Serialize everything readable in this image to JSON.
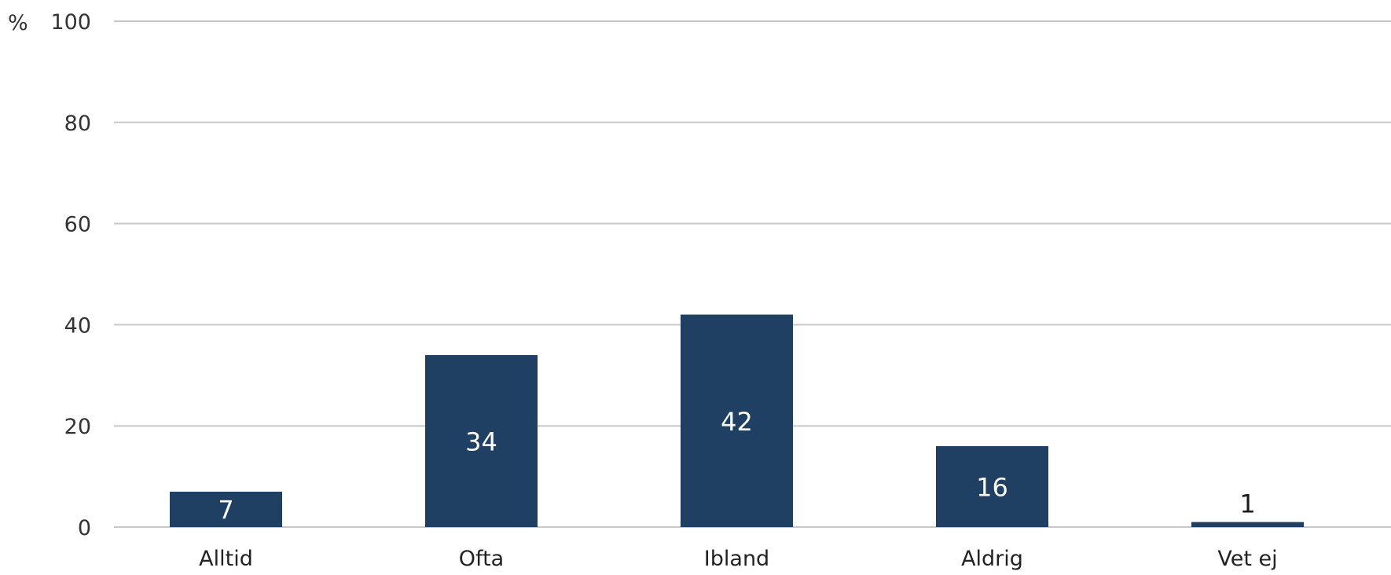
{
  "chart_data": {
    "type": "bar",
    "title": "",
    "xlabel": "",
    "ylabel": "%",
    "categories": [
      "Alltid",
      "Ofta",
      "Ibland",
      "Aldrig",
      "Vet ej"
    ],
    "values": [
      7,
      34,
      42,
      16,
      1
    ],
    "data_labels": [
      "7",
      "34",
      "42",
      "16",
      "1"
    ],
    "ylim": [
      0,
      100
    ],
    "yticks": [
      0,
      20,
      40,
      60,
      80,
      100
    ],
    "ytick_labels": [
      "0",
      "20",
      "40",
      "60",
      "80",
      "100"
    ],
    "grid": true,
    "legend": "none",
    "colors": {
      "bar": "#1f4062",
      "grid": "#c8c8c8",
      "label_inside": "#ffffff",
      "label_outside": "#1a1a1a"
    }
  }
}
